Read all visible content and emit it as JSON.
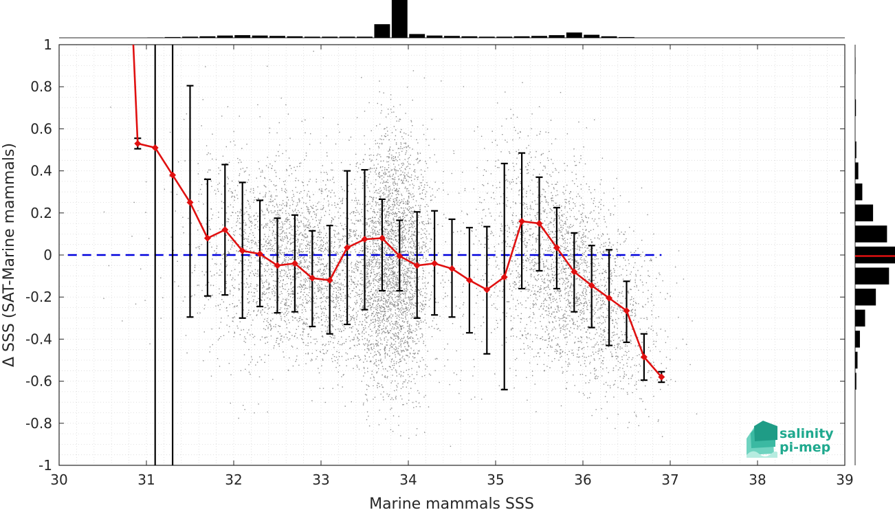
{
  "chart_data": {
    "type": "scatter",
    "xlabel": "Marine mammals SSS",
    "ylabel": "Δ SSS (SAT-Marine mammals)",
    "xlim": [
      30,
      39
    ],
    "ylim": [
      -1,
      1
    ],
    "x_ticks": [
      "30",
      "31",
      "32",
      "33",
      "34",
      "35",
      "36",
      "37",
      "38",
      "39"
    ],
    "y_ticks": [
      "1",
      "0.8",
      "0.6",
      "0.4",
      "0.2",
      "0",
      "-0.2",
      "-0.4",
      "-0.6",
      "-0.8",
      "-1"
    ],
    "grid": true,
    "reference_line": {
      "y": 0,
      "color": "#0000dd",
      "style": "dashed"
    },
    "mean_curve": {
      "color": "#e01010",
      "x": [
        30.9,
        31.1,
        31.3,
        31.5,
        31.7,
        31.9,
        32.1,
        32.3,
        32.5,
        32.7,
        32.9,
        33.1,
        33.3,
        33.5,
        33.7,
        33.9,
        34.1,
        34.3,
        34.5,
        34.7,
        34.9,
        35.1,
        35.3,
        35.5,
        35.7,
        35.9,
        36.1,
        36.3,
        36.5,
        36.7,
        36.9
      ],
      "y": [
        0.53,
        0.51,
        0.38,
        0.25,
        0.08,
        0.12,
        0.02,
        0.005,
        -0.05,
        -0.04,
        -0.11,
        -0.12,
        0.035,
        0.075,
        0.08,
        -0.005,
        -0.05,
        -0.04,
        -0.065,
        -0.12,
        -0.165,
        -0.105,
        0.16,
        0.15,
        0.035,
        -0.08,
        -0.145,
        -0.205,
        -0.265,
        -0.485,
        -0.58
      ],
      "ylow": [
        0.505,
        -1.5,
        -1.5,
        -0.295,
        -0.195,
        -0.19,
        -0.3,
        -0.245,
        -0.275,
        -0.27,
        -0.34,
        -0.375,
        -0.33,
        -0.26,
        -0.17,
        -0.17,
        -0.3,
        -0.285,
        -0.295,
        -0.37,
        -0.47,
        -0.64,
        -0.16,
        -0.075,
        -0.16,
        -0.27,
        -0.345,
        -0.43,
        -0.415,
        -0.595,
        -0.605
      ],
      "yhigh": [
        0.555,
        1.5,
        1.5,
        0.805,
        0.36,
        0.43,
        0.345,
        0.26,
        0.175,
        0.19,
        0.115,
        0.14,
        0.4,
        0.405,
        0.265,
        0.165,
        0.205,
        0.21,
        0.17,
        0.13,
        0.135,
        0.435,
        0.485,
        0.37,
        0.225,
        0.105,
        0.045,
        0.025,
        -0.125,
        -0.375,
        -0.555
      ],
      "start_segment_top": {
        "x": 30.85,
        "y": 1.0
      }
    },
    "scatter_point_color": "#8c8c8c",
    "top_histogram": {
      "x": [
        31.1,
        31.3,
        31.5,
        31.7,
        31.9,
        32.1,
        32.3,
        32.5,
        32.7,
        32.9,
        33.1,
        33.3,
        33.5,
        33.7,
        33.9,
        34.1,
        34.3,
        34.5,
        34.7,
        34.9,
        35.1,
        35.3,
        35.5,
        35.7,
        35.9,
        36.1,
        36.3,
        36.5
      ],
      "counts": [
        1,
        2,
        3,
        4,
        6,
        7,
        6,
        5,
        4,
        3,
        3,
        3,
        3,
        36,
        100,
        10,
        6,
        5,
        4,
        3,
        3,
        4,
        5,
        7,
        14,
        8,
        4,
        2
      ]
    },
    "right_histogram": {
      "y": [
        0.9,
        0.7,
        0.5,
        0.4,
        0.3,
        0.2,
        0.1,
        0.0,
        -0.1,
        -0.2,
        -0.3,
        -0.4,
        -0.5,
        -0.6
      ],
      "counts": [
        1,
        2,
        3,
        8,
        18,
        45,
        80,
        100,
        85,
        52,
        25,
        12,
        6,
        3
      ],
      "median_marker_color": "#e01010"
    }
  },
  "logo": {
    "line1": "salinity",
    "line2": "pi-mep",
    "color": "#1fa98e"
  }
}
